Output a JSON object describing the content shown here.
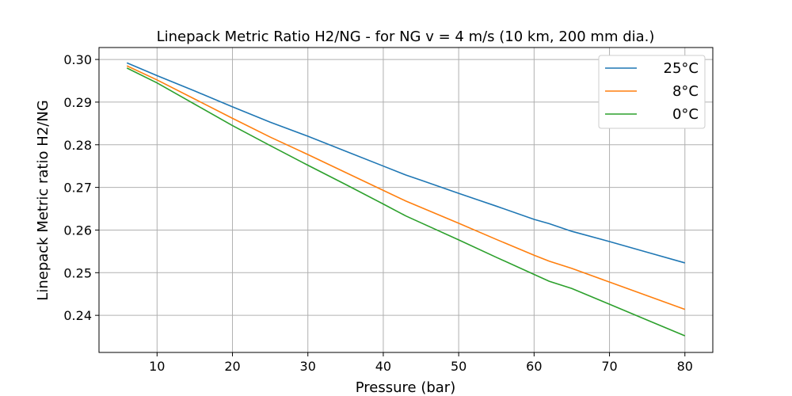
{
  "chart_data": {
    "type": "line",
    "title": "Linepack Metric Ratio H2/NG - for NG v = 4 m/s (10 km, 200 mm dia.)",
    "xlabel": "Pressure (bar)",
    "ylabel": "Linepack Metric ratio H2/NG",
    "xlim": [
      2.3,
      83.7
    ],
    "ylim": [
      0.2313,
      0.3028
    ],
    "xticks": [
      10,
      20,
      30,
      40,
      50,
      60,
      70,
      80
    ],
    "yticks": [
      0.24,
      0.25,
      0.26,
      0.27,
      0.28,
      0.29,
      0.3
    ],
    "xtick_labels": [
      "10",
      "20",
      "30",
      "40",
      "50",
      "60",
      "70",
      "80"
    ],
    "ytick_labels": [
      "0.24",
      "0.25",
      "0.26",
      "0.27",
      "0.28",
      "0.29",
      "0.30"
    ],
    "grid": true,
    "legend_position": "upper-right",
    "x": [
      6,
      10,
      15,
      20,
      25,
      30,
      35,
      40,
      43,
      45,
      50,
      55,
      60,
      62,
      65,
      70,
      75,
      80
    ],
    "series": [
      {
        "name": "25°C",
        "color": "#1f77b4",
        "values": [
          0.2992,
          0.2962,
          0.2926,
          0.2889,
          0.2853,
          0.282,
          0.2785,
          0.275,
          0.2729,
          0.2717,
          0.2686,
          0.2656,
          0.2625,
          0.2615,
          0.2597,
          0.2573,
          0.2548,
          0.2523
        ]
      },
      {
        "name": "8°C",
        "color": "#ff7f0e",
        "values": [
          0.2985,
          0.2952,
          0.2907,
          0.2862,
          0.2818,
          0.2777,
          0.2735,
          0.2693,
          0.2668,
          0.2653,
          0.2616,
          0.2578,
          0.2541,
          0.2527,
          0.251,
          0.2478,
          0.2446,
          0.2414
        ]
      },
      {
        "name": "0°C",
        "color": "#2ca02c",
        "values": [
          0.298,
          0.2945,
          0.2895,
          0.2845,
          0.2798,
          0.2752,
          0.2707,
          0.2661,
          0.2633,
          0.2617,
          0.2577,
          0.2536,
          0.2496,
          0.248,
          0.2463,
          0.2426,
          0.2389,
          0.2352
        ]
      }
    ]
  }
}
